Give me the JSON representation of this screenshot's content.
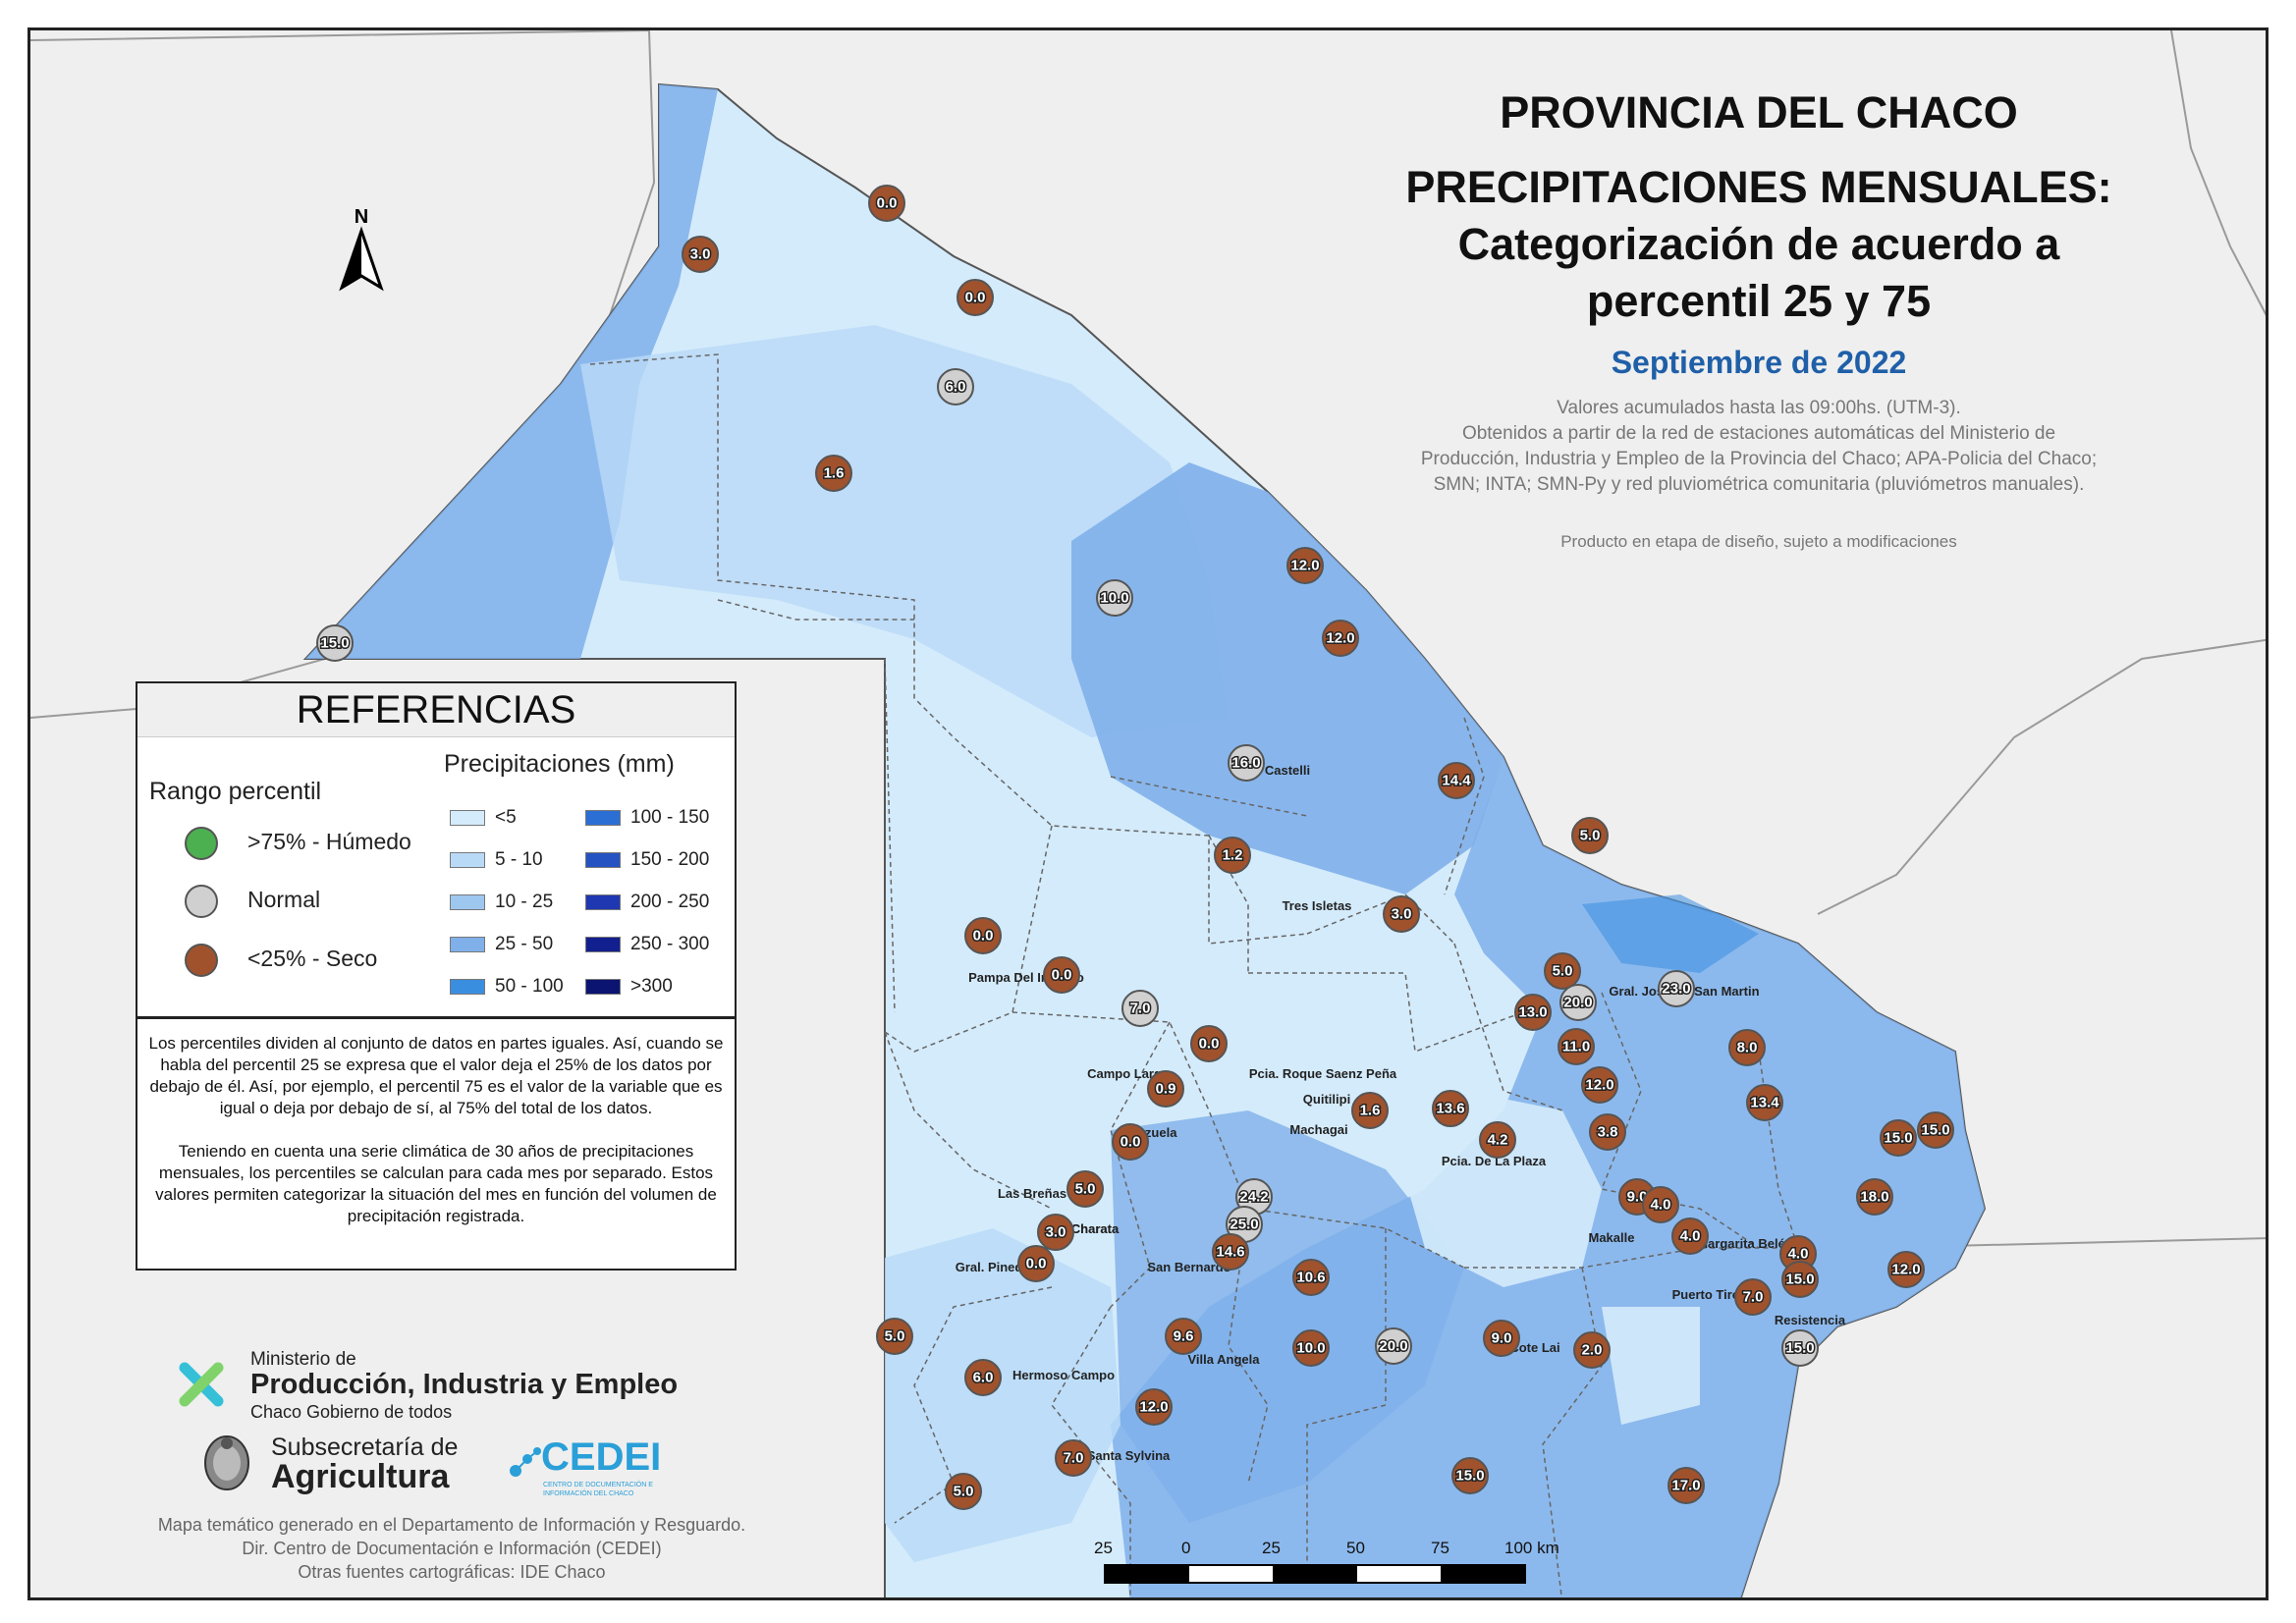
{
  "header": {
    "title_line1": "PROVINCIA DEL CHACO",
    "title_line2": "PRECIPITACIONES MENSUALES:",
    "title_line3": "Categorización de acuerdo a",
    "title_line4": "percentil 25 y 75",
    "period": "Septiembre de 2022",
    "source_line1": "Valores acumulados hasta las 09:00hs. (UTM-3).",
    "source_line2": "Obtenidos a partir de la red de estaciones automáticas del Ministerio de",
    "source_line3": "Producción, Industria y Empleo de la Provincia del Chaco; APA-Policia del Chaco;",
    "source_line4": "SMN; INTA; SMN-Py y red pluviométrica comunitaria (pluviómetros manuales).",
    "disclaimer": "Producto en etapa de diseño, sujeto a modificaciones"
  },
  "north_arrow": {
    "label": "N",
    "icon": "north-arrow-icon"
  },
  "legend": {
    "title": "REFERENCIAS",
    "percentile_heading": "Rango percentil",
    "percentile_items": [
      {
        "label": ">75% - Húmedo",
        "color": "#4caf50"
      },
      {
        "label": "Normal",
        "color": "#d0d0d0"
      },
      {
        "label": "<25% - Seco",
        "color": "#a0522d"
      }
    ],
    "precip_heading": "Precipitaciones (mm)",
    "precip_col1": [
      {
        "label": "<5",
        "color": "#d4ebfb"
      },
      {
        "label": "5 - 10",
        "color": "#b9daf7"
      },
      {
        "label": "10 - 25",
        "color": "#9ec7f0"
      },
      {
        "label": "25 - 50",
        "color": "#7fb0ea"
      },
      {
        "label": "50 - 100",
        "color": "#3a8ee0"
      }
    ],
    "precip_col2": [
      {
        "label": "100 - 150",
        "color": "#2c6fd4"
      },
      {
        "label": "150 - 200",
        "color": "#2553c2"
      },
      {
        "label": "200 - 250",
        "color": "#1f37b0"
      },
      {
        "label": "250 - 300",
        "color": "#121f8e"
      },
      {
        "label": ">300",
        "color": "#0b1470"
      }
    ]
  },
  "note": {
    "p1": "Los percentiles dividen al conjunto de datos en partes iguales. Así, cuando se habla del percentil 25 se expresa que el valor deja el 25% de los datos por debajo de él. Así, por ejemplo, el percentil 75 es el valor de la variable que es igual o deja por debajo de sí, al 75% del total de los datos.",
    "p2": "Teniendo en cuenta una serie climática de 30 años de precipitaciones mensuales, los percentiles se calculan para cada mes por separado. Estos valores permiten categorizar la situación del mes en función del volumen de precipitación registrada."
  },
  "logos": {
    "ministry_small": "Ministerio de",
    "ministry_big": "Producción, Industria y Empleo",
    "ministry_sub": "Chaco Gobierno de todos",
    "subsec_small": "Subsecretaría de",
    "subsec_big": "Agricultura",
    "cedei": "CEDEI",
    "cedei_sub": "CENTRO DE DOCUMENTACIÓN E INFORMACIÓN DEL CHACO"
  },
  "credits": {
    "line1": "Mapa temático generado en el Departamento de Información y Resguardo.",
    "line2": "Dir. Centro de Documentación e Información (CEDEI)",
    "line3": "Otras fuentes cartográficas: IDE Chaco"
  },
  "scale": {
    "ticks": [
      "25",
      "0",
      "25",
      "50",
      "75",
      "100 km"
    ]
  },
  "places": [
    {
      "name": "Castelli"
    },
    {
      "name": "Tres Isletas"
    },
    {
      "name": "Pampa Del Infierno"
    },
    {
      "name": "Gral. Jose De San Martin"
    },
    {
      "name": "Campo Largo"
    },
    {
      "name": "Pcia. Roque Saenz Peña"
    },
    {
      "name": "Quitilipi"
    },
    {
      "name": "Machagai"
    },
    {
      "name": "Charata"
    },
    {
      "name": "Corzuela"
    },
    {
      "name": "Las Breñas"
    },
    {
      "name": "Charata"
    },
    {
      "name": "Gral. Pinedo"
    },
    {
      "name": "San Bernardo"
    },
    {
      "name": "Pcia. De La Plaza"
    },
    {
      "name": "Makalle"
    },
    {
      "name": "Margarita Belén"
    },
    {
      "name": "Puerto Tirol"
    },
    {
      "name": "Resistencia"
    },
    {
      "name": "Cote Lai"
    },
    {
      "name": "Villa Angela"
    },
    {
      "name": "Hermoso Campo"
    },
    {
      "name": "Santa Sylvina"
    }
  ],
  "stations": [
    {
      "value": "0.0",
      "cat": "dry"
    },
    {
      "value": "3.0",
      "cat": "dry"
    },
    {
      "value": "0.0",
      "cat": "dry"
    },
    {
      "value": "6.0",
      "cat": "normal"
    },
    {
      "value": "1.6",
      "cat": "dry"
    },
    {
      "value": "12.0",
      "cat": "dry"
    },
    {
      "value": "10.0",
      "cat": "normal"
    },
    {
      "value": "12.0",
      "cat": "dry"
    },
    {
      "value": "15.0",
      "cat": "normal"
    },
    {
      "value": "16.0",
      "cat": "normal"
    },
    {
      "value": "14.4",
      "cat": "dry"
    },
    {
      "value": "5.0",
      "cat": "dry"
    },
    {
      "value": "1.2",
      "cat": "dry"
    },
    {
      "value": "3.0",
      "cat": "dry"
    },
    {
      "value": "0.0",
      "cat": "dry"
    },
    {
      "value": "0.0",
      "cat": "dry"
    },
    {
      "value": "7.0",
      "cat": "normal"
    },
    {
      "value": "0.0",
      "cat": "dry"
    },
    {
      "value": "5.0",
      "cat": "dry"
    },
    {
      "value": "20.0",
      "cat": "normal"
    },
    {
      "value": "13.0",
      "cat": "dry"
    },
    {
      "value": "23.0",
      "cat": "normal"
    },
    {
      "value": "11.0",
      "cat": "dry"
    },
    {
      "value": "8.0",
      "cat": "dry"
    },
    {
      "value": "12.0",
      "cat": "dry"
    },
    {
      "value": "13.4",
      "cat": "dry"
    },
    {
      "value": "0.9",
      "cat": "dry"
    },
    {
      "value": "1.6",
      "cat": "dry"
    },
    {
      "value": "13.6",
      "cat": "dry"
    },
    {
      "value": "4.2",
      "cat": "dry"
    },
    {
      "value": "3.8",
      "cat": "dry"
    },
    {
      "value": "15.0",
      "cat": "dry"
    },
    {
      "value": "15.0",
      "cat": "dry"
    },
    {
      "value": "0.0",
      "cat": "dry"
    },
    {
      "value": "18.0",
      "cat": "dry"
    },
    {
      "value": "5.0",
      "cat": "dry"
    },
    {
      "value": "24.2",
      "cat": "normal"
    },
    {
      "value": "9.0",
      "cat": "dry"
    },
    {
      "value": "4.0",
      "cat": "dry"
    },
    {
      "value": "3.0",
      "cat": "dry"
    },
    {
      "value": "25.0",
      "cat": "normal"
    },
    {
      "value": "4.0",
      "cat": "dry"
    },
    {
      "value": "14.6",
      "cat": "dry"
    },
    {
      "value": "4.0",
      "cat": "dry"
    },
    {
      "value": "0.0",
      "cat": "dry"
    },
    {
      "value": "12.0",
      "cat": "dry"
    },
    {
      "value": "10.6",
      "cat": "dry"
    },
    {
      "value": "15.0",
      "cat": "dry"
    },
    {
      "value": "7.0",
      "cat": "dry"
    },
    {
      "value": "5.0",
      "cat": "dry"
    },
    {
      "value": "9.6",
      "cat": "dry"
    },
    {
      "value": "10.0",
      "cat": "dry"
    },
    {
      "value": "20.0",
      "cat": "normal"
    },
    {
      "value": "9.0",
      "cat": "dry"
    },
    {
      "value": "2.0",
      "cat": "dry"
    },
    {
      "value": "15.0",
      "cat": "normal"
    },
    {
      "value": "6.0",
      "cat": "dry"
    },
    {
      "value": "12.0",
      "cat": "dry"
    },
    {
      "value": "7.0",
      "cat": "dry"
    },
    {
      "value": "15.0",
      "cat": "dry"
    },
    {
      "value": "17.0",
      "cat": "dry"
    },
    {
      "value": "5.0",
      "cat": "dry"
    }
  ],
  "colors": {
    "dry": "#a0522d",
    "normal": "#d0d0d0",
    "wet": "#4caf50",
    "period": "#1f5fa8"
  }
}
